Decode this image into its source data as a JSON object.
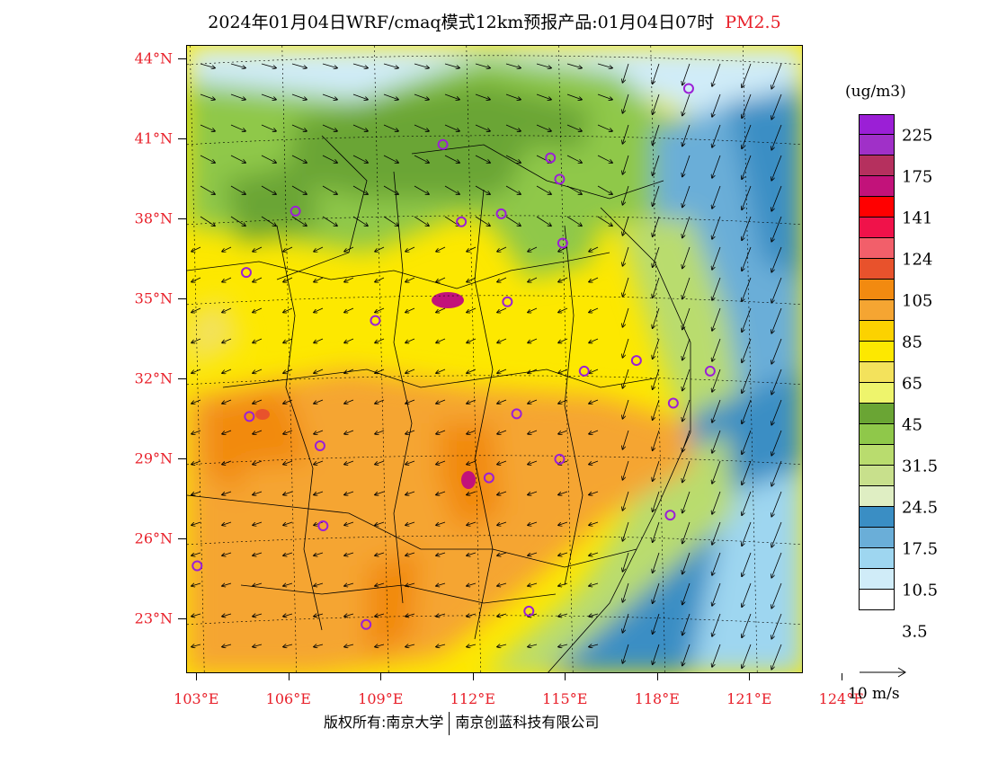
{
  "title": {
    "text": "2024年01月04日WRF/cmaq模式12km预报产品:01月04日07时",
    "species": "PM2.5"
  },
  "axes": {
    "lat_labels": [
      "44°N",
      "41°N",
      "38°N",
      "35°N",
      "32°N",
      "29°N",
      "26°N",
      "23°N"
    ],
    "lat_values": [
      44,
      41,
      38,
      35,
      32,
      29,
      26,
      23
    ],
    "lon_labels": [
      "103°E",
      "106°E",
      "109°E",
      "112°E",
      "115°E",
      "118°E",
      "121°E",
      "124°E"
    ],
    "lon_values": [
      103,
      106,
      109,
      112,
      115,
      118,
      121,
      124
    ]
  },
  "colorbar": {
    "unit": "(ug/m3)",
    "colors": [
      "#9b1fd6",
      "#a030c8",
      "#b5305e",
      "#c2127a",
      "#ff0000",
      "#f0124a",
      "#f25f6a",
      "#e8522c",
      "#f28a10",
      "#f5a532",
      "#fcd200",
      "#fde800",
      "#f3e25c",
      "#eef46c",
      "#6aa534",
      "#8fc84a",
      "#b9dc6e",
      "#c8e08c",
      "#dfeec3",
      "#3a8ec4",
      "#6aaed8",
      "#9ed6f0",
      "#d0ecf8",
      "#ffffff"
    ],
    "labels": [
      "225",
      "175",
      "141",
      "124",
      "105",
      "85",
      "65",
      "45",
      "31.5",
      "24.5",
      "17.5",
      "10.5",
      "3.5"
    ]
  },
  "reference_vector": {
    "label": "10 m/s"
  },
  "footer": {
    "left": "版权所有:南京大学",
    "right": "南京创蓝科技有限公司"
  },
  "stations": [
    {
      "lon": 111.0,
      "lat": 40.8
    },
    {
      "lon": 119.0,
      "lat": 42.9
    },
    {
      "lon": 114.5,
      "lat": 40.3
    },
    {
      "lon": 114.8,
      "lat": 39.5
    },
    {
      "lon": 106.2,
      "lat": 38.3
    },
    {
      "lon": 111.6,
      "lat": 37.9
    },
    {
      "lon": 112.9,
      "lat": 38.2
    },
    {
      "lon": 114.9,
      "lat": 37.1
    },
    {
      "lon": 104.6,
      "lat": 36.0
    },
    {
      "lon": 113.1,
      "lat": 34.9
    },
    {
      "lon": 108.8,
      "lat": 34.2
    },
    {
      "lon": 117.3,
      "lat": 32.7
    },
    {
      "lon": 115.6,
      "lat": 32.3
    },
    {
      "lon": 119.7,
      "lat": 32.3
    },
    {
      "lon": 118.5,
      "lat": 31.1
    },
    {
      "lon": 104.7,
      "lat": 30.6
    },
    {
      "lon": 113.4,
      "lat": 30.7
    },
    {
      "lon": 107.0,
      "lat": 29.5
    },
    {
      "lon": 114.8,
      "lat": 29.0
    },
    {
      "lon": 112.5,
      "lat": 28.3
    },
    {
      "lon": 107.1,
      "lat": 26.5
    },
    {
      "lon": 118.4,
      "lat": 26.9
    },
    {
      "lon": 103.0,
      "lat": 25.0
    },
    {
      "lon": 108.5,
      "lat": 22.8
    },
    {
      "lon": 113.8,
      "lat": 23.3
    }
  ]
}
